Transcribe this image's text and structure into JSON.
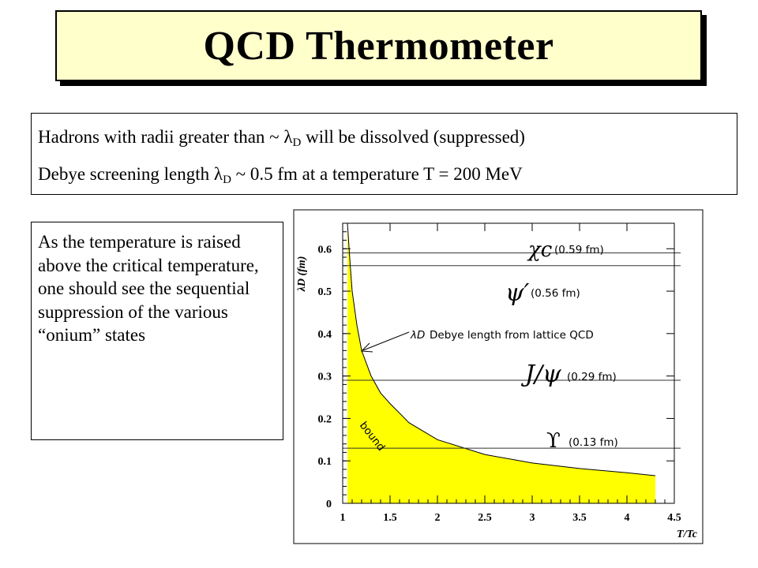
{
  "title": "QCD Thermometer",
  "intro": {
    "line1_before": "Hadrons with radii greater than ~ ",
    "line1_symbol": "λ",
    "line1_sub": "D",
    "line1_after": " will be dissolved  (suppressed)",
    "line2_before": "Debye screening  length ",
    "line2_symbol": "λ",
    "line2_sub": "D",
    "line2_after": " ~ 0.5 fm at a temperature T = 200 MeV"
  },
  "side_text": "As the temperature is raised above the critical temperature, one should see the sequential suppression of the various “onium” states",
  "chart_data": {
    "type": "area",
    "title": "",
    "ylabel": "λD (fm)",
    "xlabel": "T/Tc",
    "xlim": [
      1,
      4.5
    ],
    "ylim": [
      0,
      0.66
    ],
    "x_ticks": [
      "1",
      "1.5",
      "2",
      "2.5",
      "3",
      "3.5",
      "4",
      "4.5"
    ],
    "y_ticks": [
      "0",
      "0.1",
      "0.2",
      "0.3",
      "0.4",
      "0.5",
      "0.6"
    ],
    "series": [
      {
        "name": "Debye length from lattice QCD",
        "x": [
          1.05,
          1.08,
          1.1,
          1.15,
          1.2,
          1.3,
          1.4,
          1.5,
          1.7,
          2.0,
          2.5,
          3.0,
          3.5,
          4.0,
          4.3
        ],
        "y": [
          0.66,
          0.56,
          0.5,
          0.42,
          0.36,
          0.3,
          0.26,
          0.235,
          0.19,
          0.15,
          0.115,
          0.095,
          0.082,
          0.072,
          0.065
        ],
        "fill": "#ffff00"
      }
    ],
    "reference_lines": [
      {
        "state": "χc",
        "label": "(0.59 fm)",
        "y": 0.59
      },
      {
        "state": "ψ′",
        "label": "(0.56 fm)",
        "y": 0.56
      },
      {
        "state": "J/ψ",
        "label": "(0.29 fm)",
        "y": 0.29
      },
      {
        "state": "ϒ",
        "label": "(0.13 fm)",
        "y": 0.13
      }
    ],
    "annotations": {
      "curve_label_symbol": "λD",
      "curve_label_text": "Debye length from lattice QCD",
      "region_label": "bound"
    }
  }
}
